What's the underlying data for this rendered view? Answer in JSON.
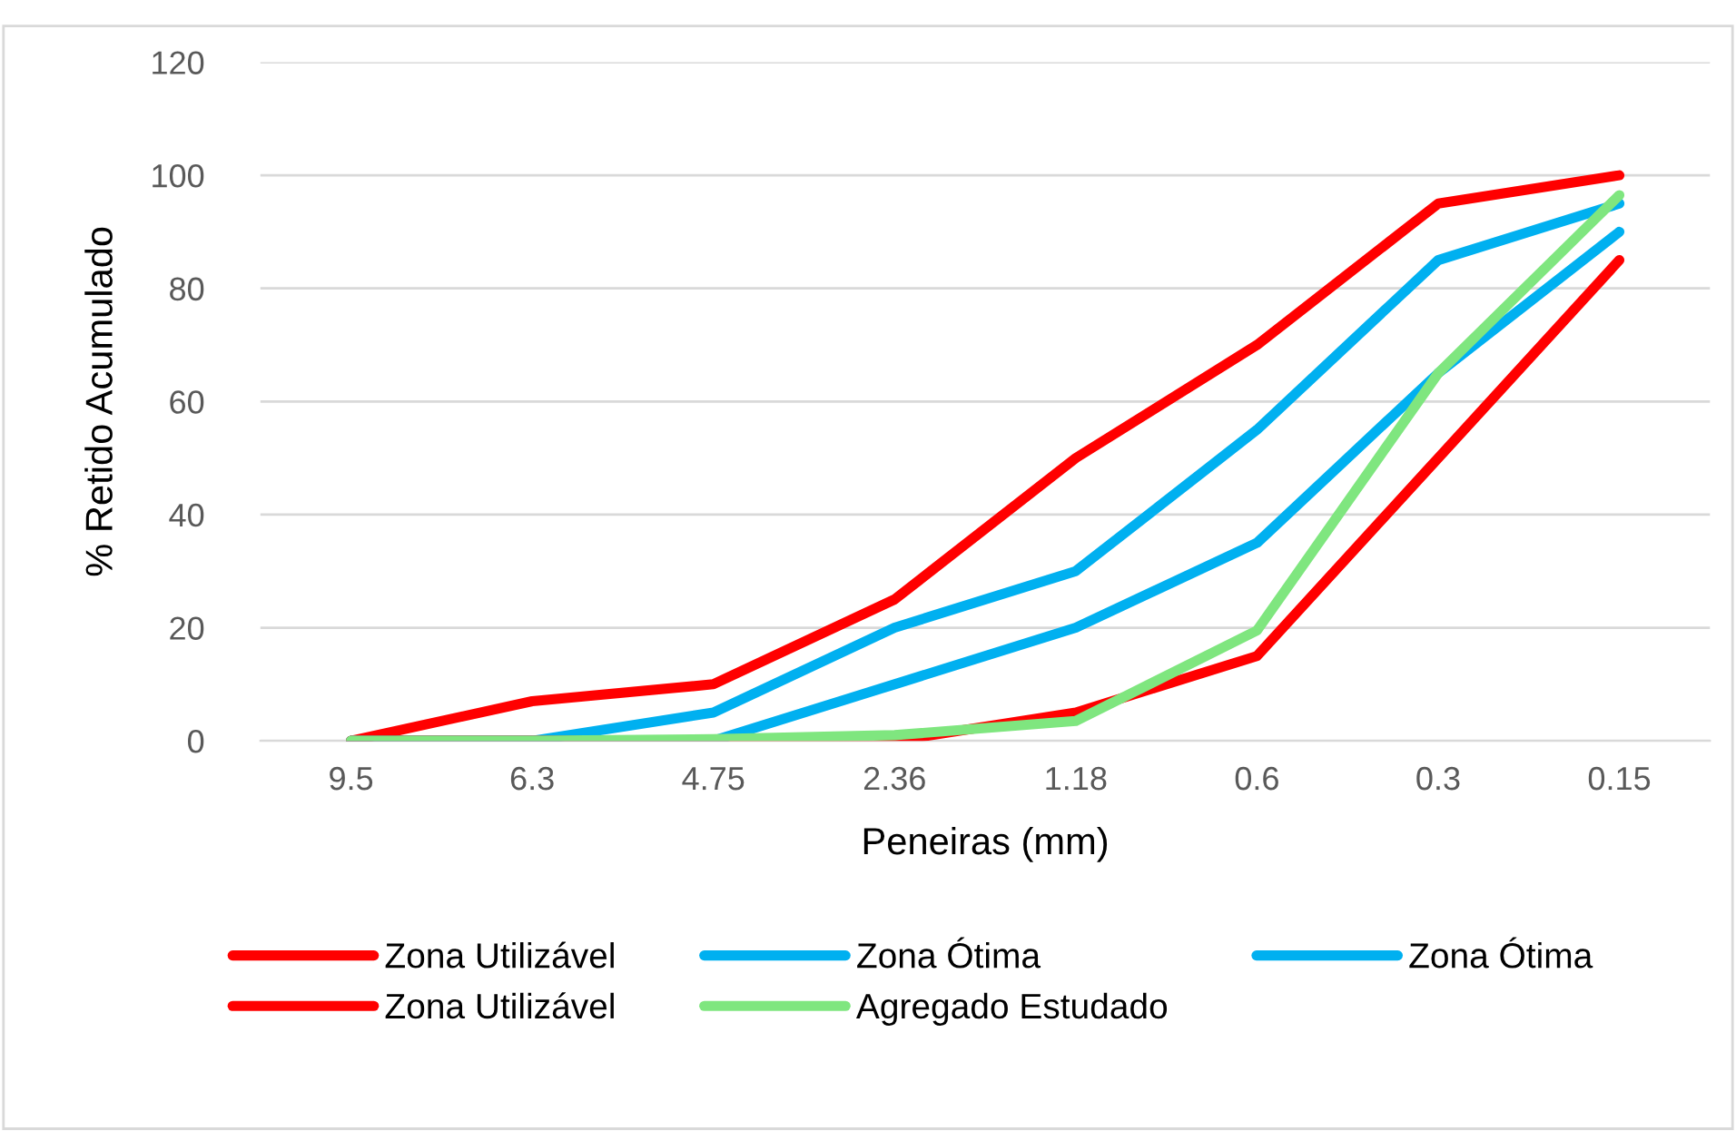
{
  "chart_data": {
    "type": "line",
    "xlabel": "Peneiras (mm)",
    "ylabel": "% Retido Acumulado",
    "categories": [
      "9.5",
      "6.3",
      "4.75",
      "2.36",
      "1.18",
      "0.6",
      "0.3",
      "0.15"
    ],
    "series": [
      {
        "name": "Zona Utilizável",
        "color": "#ff0000",
        "values": [
          0,
          7,
          10,
          25,
          50,
          70,
          95,
          100
        ]
      },
      {
        "name": "Zona Ótima",
        "color": "#00b0f0",
        "values": [
          0,
          0,
          5,
          20,
          30,
          55,
          85,
          95
        ]
      },
      {
        "name": "Zona Ótima",
        "color": "#00b0f0",
        "values": [
          0,
          0,
          0,
          10,
          20,
          35,
          65,
          90
        ]
      },
      {
        "name": "Zona Utilizável",
        "color": "#ff0000",
        "values": [
          0,
          0,
          0,
          0,
          5,
          15,
          50,
          85
        ]
      },
      {
        "name": "Agregado Estudado",
        "color": "#7fe67f",
        "values": [
          0,
          0,
          0.3,
          1,
          3.5,
          19.5,
          65,
          96.5
        ]
      }
    ],
    "ylim": [
      0,
      120
    ],
    "yticks": [
      0,
      20,
      40,
      60,
      80,
      100,
      120
    ],
    "grid": "y",
    "legend": "bottom",
    "marker": "none",
    "line_style": "solid"
  }
}
